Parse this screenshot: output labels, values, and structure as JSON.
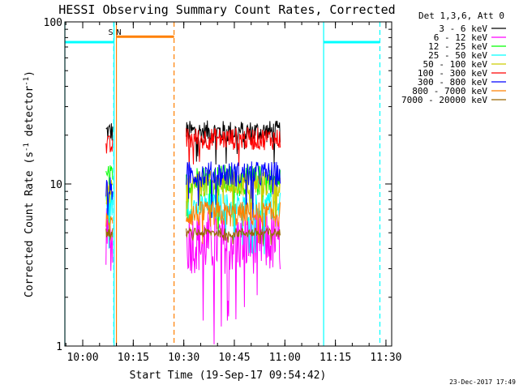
{
  "chart_data": {
    "type": "line",
    "title": "HESSI Observing Summary Count Rates, Corrected",
    "xlabel": "Start Time (19-Sep-17 09:54:42)",
    "ylabel_main": "Corrected Count Rate (s",
    "ylabel_exp1": "-1",
    "ylabel_mid": " detector",
    "ylabel_exp2": "-1",
    "ylabel_end": ")",
    "yscale": "log",
    "ylim": [
      1,
      100
    ],
    "xlim_min": [
      0,
      97
    ],
    "x_ticks": [
      {
        "min": 5.3,
        "label": "10:00"
      },
      {
        "min": 20.3,
        "label": "10:15"
      },
      {
        "min": 35.3,
        "label": "10:30"
      },
      {
        "min": 50.3,
        "label": "10:45"
      },
      {
        "min": 65.3,
        "label": "11:00"
      },
      {
        "min": 80.3,
        "label": "11:15"
      },
      {
        "min": 95.3,
        "label": "11:30"
      }
    ],
    "y_ticks": [
      {
        "value": 1,
        "label": "1"
      },
      {
        "value": 10,
        "label": "10"
      },
      {
        "value": 100,
        "label": "100"
      }
    ],
    "stamp": "23-Dec-2017 17:49",
    "legend_title": "Det 1,3,6, Att 0",
    "series": [
      {
        "name": "3 - 6 keV",
        "color": "#000000",
        "level1": 21,
        "level2": 21,
        "jitter": 0.07
      },
      {
        "name": "6 - 12 keV",
        "color": "#ff00ff",
        "level1": 4.5,
        "level2": 4.4,
        "jitter": 0.2
      },
      {
        "name": "12 - 25 keV",
        "color": "#00ff00",
        "level1": 10.5,
        "level2": 10.5,
        "jitter": 0.1
      },
      {
        "name": "25 - 50 keV",
        "color": "#00ffff",
        "level1": 7.5,
        "level2": 7.2,
        "jitter": 0.09
      },
      {
        "name": "50 - 100 keV",
        "color": "#cccc00",
        "level1": 8.8,
        "level2": 10.0,
        "jitter": 0.08
      },
      {
        "name": "100 - 300 keV",
        "color": "#ff0000",
        "level1": 17,
        "level2": 19,
        "jitter": 0.07
      },
      {
        "name": "300 - 800 keV",
        "color": "#0000ff",
        "level1": 9.2,
        "level2": 11.5,
        "jitter": 0.08
      },
      {
        "name": "800 - 7000 keV",
        "color": "#ff8000",
        "level1": 5.6,
        "level2": 6.5,
        "jitter": 0.08
      },
      {
        "name": "7000 - 20000 keV",
        "color": "#996600",
        "level1": 5.0,
        "level2": 5.0,
        "jitter": 0.03
      }
    ],
    "segments": [
      [
        12.2,
        14.3
      ],
      [
        36.0,
        64.0
      ]
    ],
    "annotations": {
      "night_bars": [
        [
          0,
          14.5
        ],
        [
          76.8,
          93.5
        ]
      ],
      "saa_bar": [
        15.3,
        32.4
      ],
      "bar_level": 75,
      "solid_vlines": [
        {
          "min": 0.0,
          "color": "#00ffff"
        },
        {
          "min": 14.6,
          "color": "#00ffff"
        },
        {
          "min": 15.3,
          "color": "#ff8000"
        },
        {
          "min": 76.8,
          "color": "#00ffff"
        }
      ],
      "dashed_vlines": [
        {
          "min": 14.5,
          "color": "#00ffff"
        },
        {
          "min": 32.4,
          "color": "#ff8000"
        },
        {
          "min": 93.5,
          "color": "#00ffff"
        }
      ],
      "markers": [
        {
          "min": 13.6,
          "text": "S",
          "color": "#ff8000"
        },
        {
          "min": 16.0,
          "text": "N",
          "color": "#00ffff"
        }
      ]
    }
  }
}
